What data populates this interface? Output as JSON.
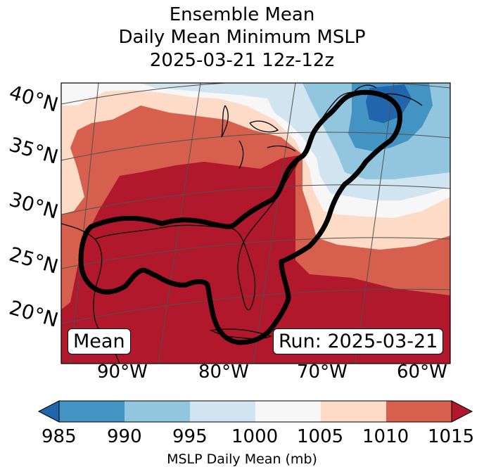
{
  "title": {
    "line1": "Ensemble Mean",
    "line2": "Daily Mean Minimum MSLP",
    "line3": "2025-03-21 12z-12z"
  },
  "map": {
    "lat_labels": [
      "40°N",
      "35°N",
      "30°N",
      "25°N",
      "20°N"
    ],
    "lon_labels": [
      "90°W",
      "80°W",
      "70°W",
      "60°W"
    ],
    "mean_box": "Mean",
    "run_box": "Run: 2025-03-21",
    "colors": {
      "lt985": "#2166ac",
      "c985_990": "#4393c3",
      "c990_995": "#92c5de",
      "c995_1000": "#d1e5f0",
      "c1000_1005": "#f7f7f7",
      "c1005_1010": "#fddbc7",
      "c1010_1015": "#d6604d",
      "gt1015": "#b2182b"
    }
  },
  "colorbar": {
    "ticks": [
      "985",
      "990",
      "995",
      "1000",
      "1005",
      "1010",
      "1015"
    ],
    "label": "MSLP Daily Mean (mb)"
  }
}
